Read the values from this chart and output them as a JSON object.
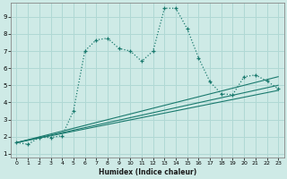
{
  "xlabel": "Humidex (Indice chaleur)",
  "bg_color": "#ceeae6",
  "grid_color": "#b0d8d4",
  "line_color": "#1a7a6e",
  "xlim": [
    -0.5,
    23.5
  ],
  "ylim": [
    0.8,
    9.8
  ],
  "xticks": [
    0,
    1,
    2,
    3,
    4,
    5,
    6,
    7,
    8,
    9,
    10,
    11,
    12,
    13,
    14,
    15,
    16,
    17,
    18,
    19,
    20,
    21,
    22,
    23
  ],
  "yticks": [
    1,
    2,
    3,
    4,
    5,
    6,
    7,
    8,
    9
  ],
  "curve_x": [
    0,
    1,
    2,
    3,
    4,
    5,
    6,
    7,
    8,
    9,
    10,
    11,
    12,
    13,
    14,
    15,
    16,
    17,
    18,
    19,
    20,
    21,
    22,
    23
  ],
  "curve_y": [
    1.65,
    1.55,
    1.95,
    1.95,
    2.05,
    3.5,
    7.0,
    7.65,
    7.75,
    7.15,
    7.0,
    6.4,
    7.0,
    9.5,
    9.5,
    8.3,
    6.6,
    5.2,
    4.5,
    4.45,
    5.5,
    5.6,
    5.25,
    4.8
  ],
  "ref_lines": [
    {
      "x": [
        0,
        23
      ],
      "y": [
        1.65,
        4.7
      ]
    },
    {
      "x": [
        0,
        23
      ],
      "y": [
        1.65,
        5.0
      ]
    },
    {
      "x": [
        0,
        23
      ],
      "y": [
        1.65,
        5.5
      ]
    }
  ]
}
